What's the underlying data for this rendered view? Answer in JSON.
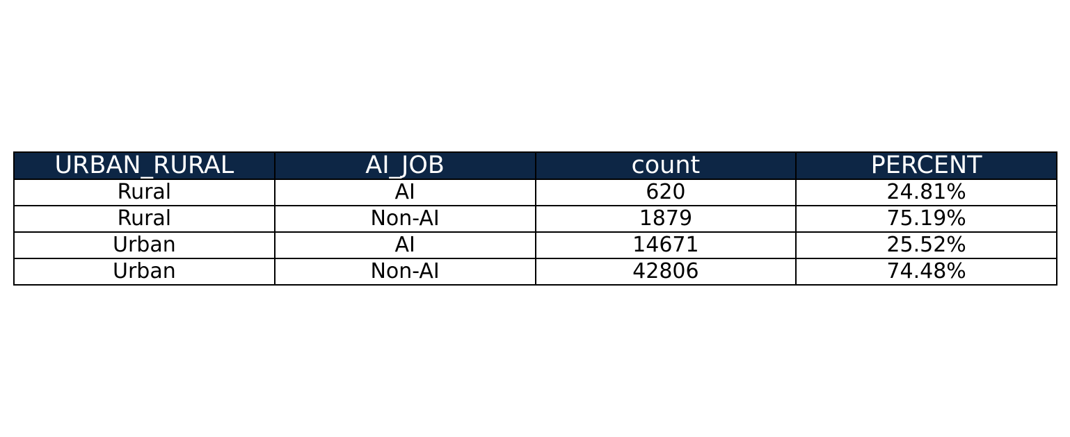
{
  "chart_data": {
    "type": "table",
    "header_color": "#0d2645",
    "header_text_color": "#ffffff",
    "columns": [
      "URBAN_RURAL",
      "AI_JOB",
      "count",
      "PERCENT"
    ],
    "rows": [
      [
        "Rural",
        "AI",
        "620",
        "24.81%"
      ],
      [
        "Rural",
        "Non-AI",
        "1879",
        "75.19%"
      ],
      [
        "Urban",
        "AI",
        "14671",
        "25.52%"
      ],
      [
        "Urban",
        "Non-AI",
        "42806",
        "74.48%"
      ]
    ]
  }
}
